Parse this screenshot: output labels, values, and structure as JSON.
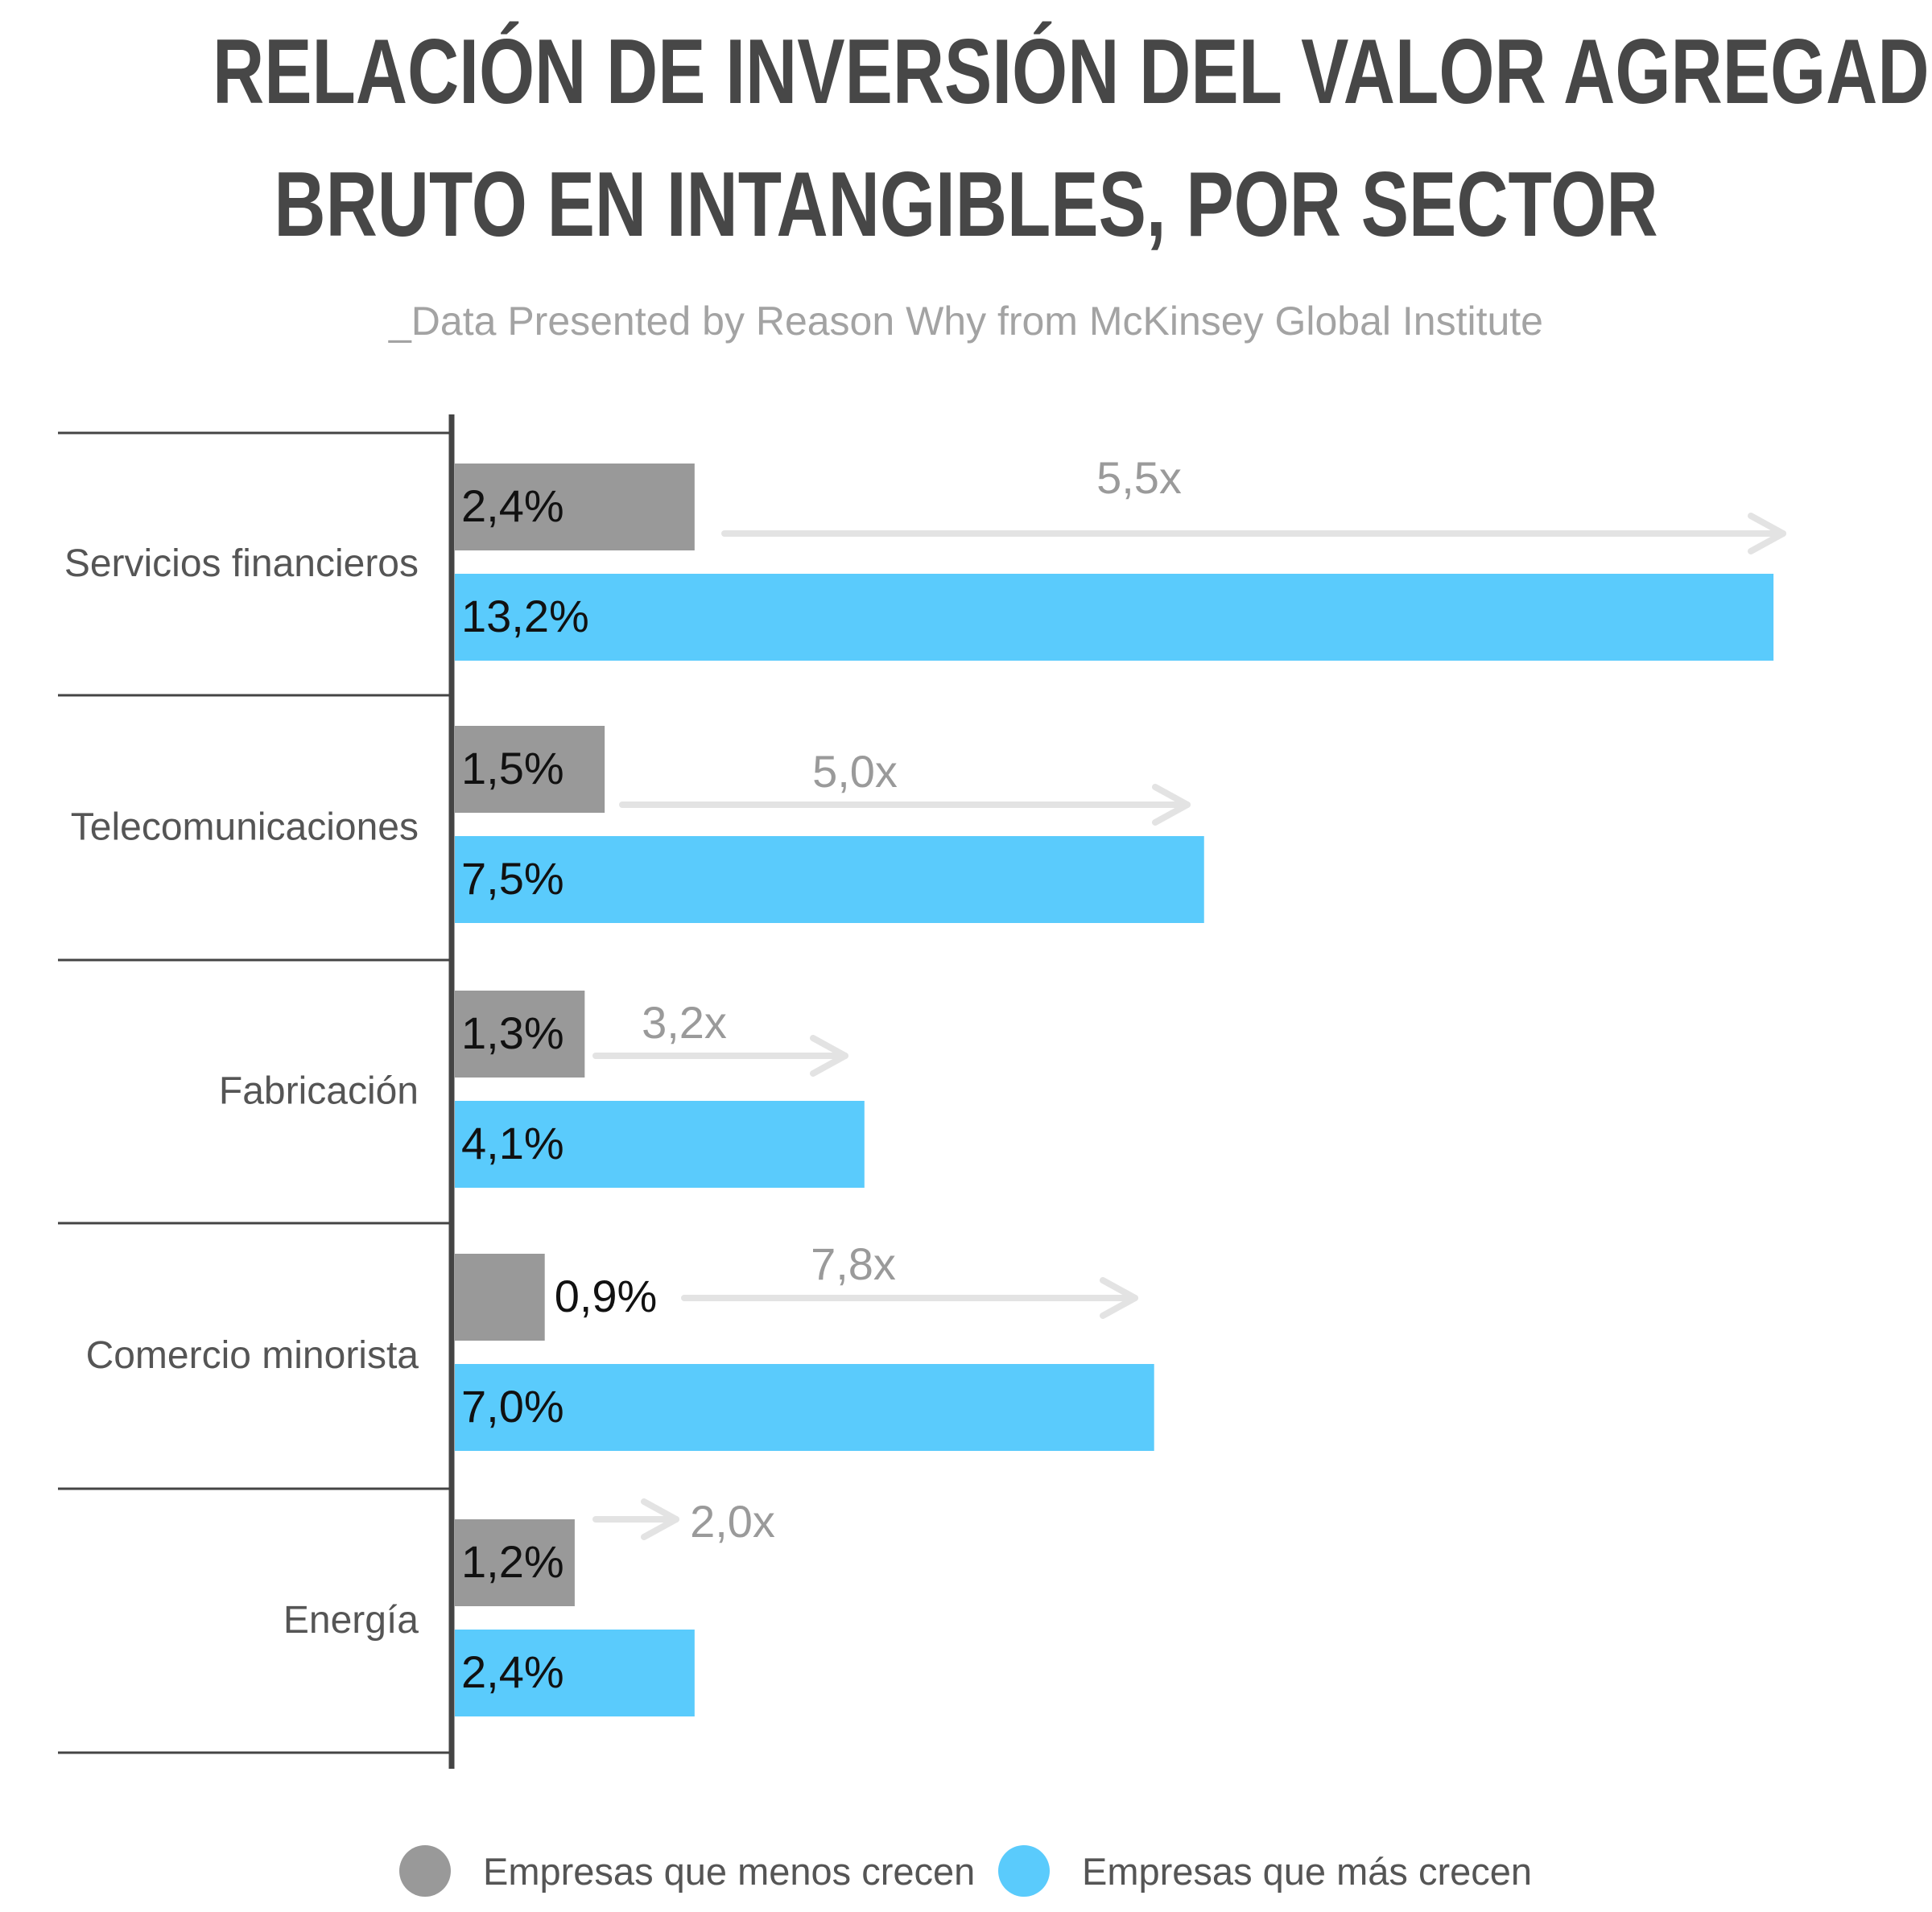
{
  "title_line1": "RELACIÓN DE INVERSIÓN DEL VALOR AGREGADO",
  "title_line2": "BRUTO EN INTANGIBLES, POR SECTOR",
  "subtitle": "_Data Presented by Reason Why from McKinsey Global Institute",
  "colors": {
    "least": "#999999",
    "most": "#5acbfc",
    "arrow": "#e3e3e3",
    "ratio_text": "#9a9a9a",
    "axis": "#444444",
    "category_text": "#555555"
  },
  "chart_data": {
    "type": "bar",
    "orientation": "horizontal",
    "categories": [
      "Servicios financieros",
      "Telecomunicaciones",
      "Fabricación",
      "Comercio minorista",
      "Energía"
    ],
    "series": [
      {
        "name": "Empresas que menos crecen",
        "values": [
          2.4,
          1.5,
          1.3,
          0.9,
          1.2
        ],
        "labels": [
          "2,4%",
          "1,5%",
          "1,3%",
          "0,9%",
          "1,2%"
        ]
      },
      {
        "name": "Empresas que más crecen",
        "values": [
          13.2,
          7.5,
          4.1,
          7.0,
          2.4
        ],
        "labels": [
          "13,2%",
          "7,5%",
          "4,1%",
          "7,0%",
          "2,4%"
        ]
      }
    ],
    "ratios": [
      "5,5x",
      "5,0x",
      "3,2x",
      "7,8x",
      "2,0x"
    ],
    "unit": "%",
    "xlim": [
      0,
      14
    ],
    "grid": false,
    "legend_position": "bottom"
  },
  "legend": {
    "least_label": "Empresas que menos crecen",
    "most_label": "Empresas que más crecen"
  }
}
